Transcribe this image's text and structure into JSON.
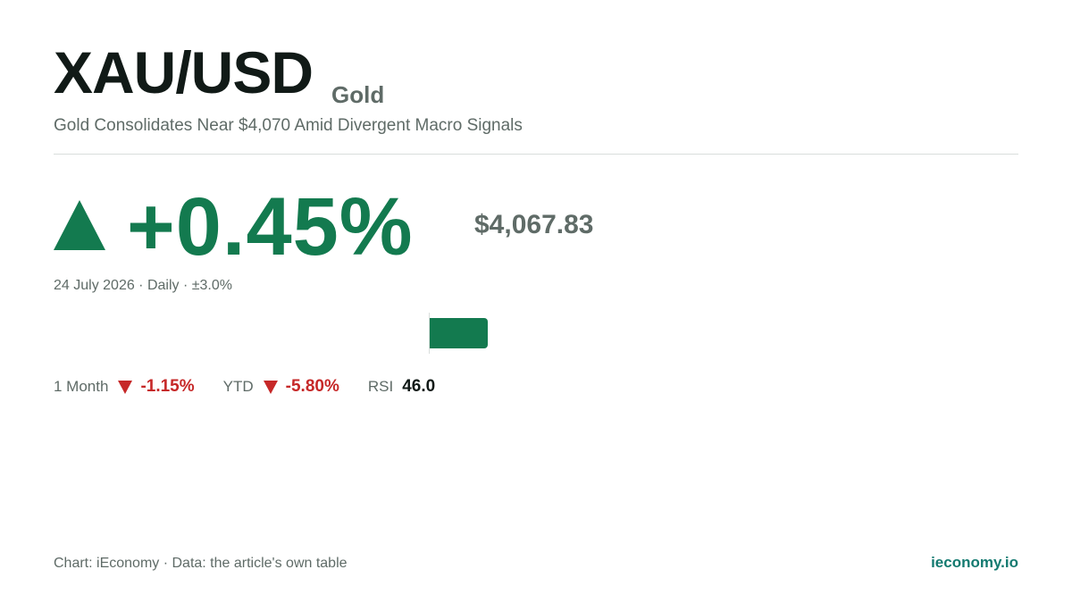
{
  "header": {
    "ticker": "XAU/USD",
    "asset_name": "Gold",
    "headline": "Gold Consolidates Near $4,070 Amid Divergent Macro Signals"
  },
  "main": {
    "change": "+0.45%",
    "change_value": 0.45,
    "range": 3.0,
    "direction": "up",
    "price": "$4,067.83",
    "meta": "24 July 2026 · Daily · ±3.0%"
  },
  "stats": {
    "month_label": "1 Month",
    "month_value": "-1.15%",
    "ytd_label": "YTD",
    "ytd_value": "-5.80%",
    "rsi_label": "RSI",
    "rsi_value": "46.0"
  },
  "footer": {
    "credit": "Chart: iEconomy · Data: the article's own table",
    "brand": "ieconomy.io"
  },
  "colors": {
    "positive": "#137a4f",
    "negative": "#c62828",
    "text_primary": "#111a17",
    "text_secondary": "#5f6b67",
    "brand": "#137a70"
  },
  "icons": {
    "direction_up": "triangle-up-icon",
    "direction_down": "triangle-down-icon"
  }
}
